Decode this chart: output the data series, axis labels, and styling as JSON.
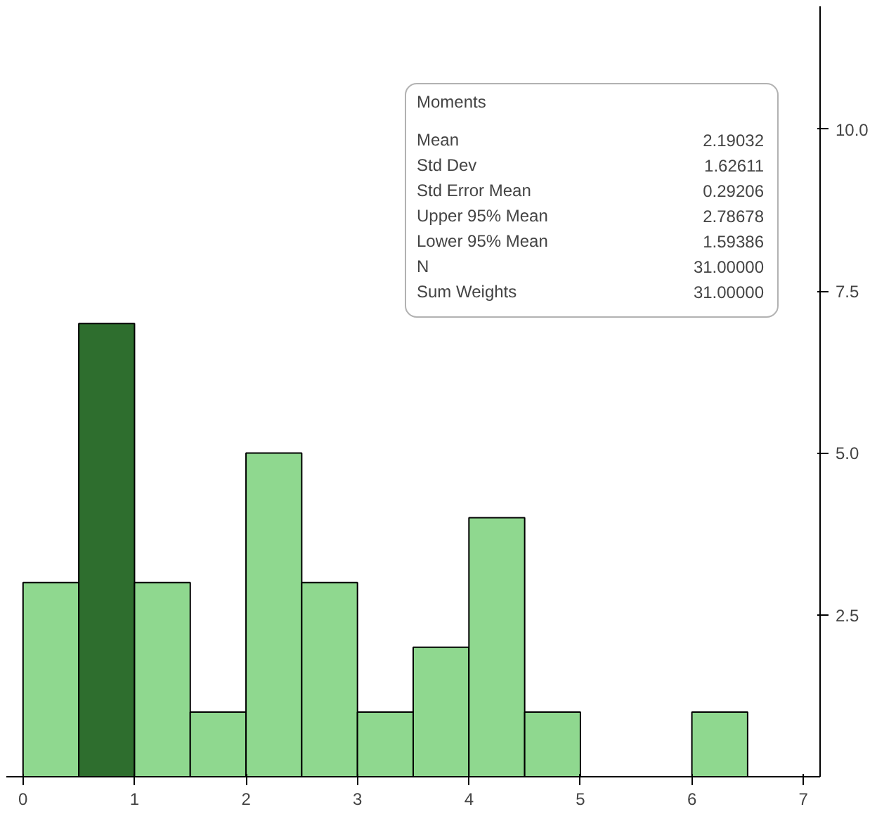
{
  "chart_data": {
    "type": "histogram",
    "bins": [
      0,
      0.5,
      1,
      1.5,
      2,
      2.5,
      3,
      3.5,
      4,
      4.5,
      5,
      5.5,
      6,
      6.5
    ],
    "values": [
      3,
      7,
      3,
      1,
      5,
      3,
      1,
      2,
      4,
      1,
      0,
      0,
      1
    ],
    "colors": [
      "#8fd88f",
      "#2e6e2e",
      "#8fd88f",
      "#8fd88f",
      "#8fd88f",
      "#8fd88f",
      "#8fd88f",
      "#8fd88f",
      "#8fd88f",
      "#8fd88f",
      "#8fd88f",
      "#8fd88f",
      "#8fd88f"
    ],
    "xlim": [
      -0.15,
      7.15
    ],
    "ylim": [
      0,
      11.9
    ],
    "xticks": [
      0,
      1,
      2,
      3,
      4,
      5,
      6,
      7
    ],
    "yticks": [
      2.5,
      {
        "value": 5,
        "label": "5.0"
      },
      7.5,
      {
        "value": 10,
        "label": "10.0"
      }
    ],
    "annotations": [
      "Moments",
      "Mean",
      "2.19032",
      "Std Dev",
      "1.62611",
      "Std Error Mean",
      "0.29206",
      "Upper 95% Mean",
      "2.78678",
      "Lower 95% Mean",
      "1.59386",
      "N",
      "31.00000",
      "Sum Weights",
      "31.00000"
    ]
  }
}
